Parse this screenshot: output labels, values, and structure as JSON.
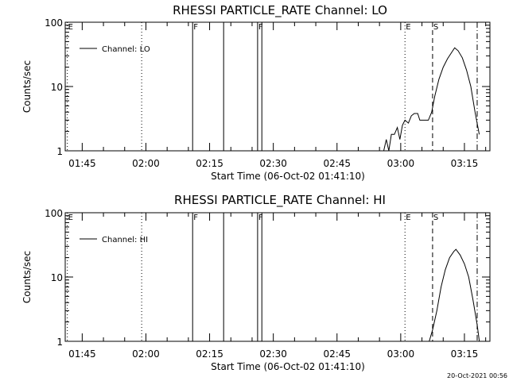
{
  "footer": {
    "timestamp": "20-Oct-2021 00:56"
  },
  "chart_data": [
    {
      "type": "line",
      "title": "RHESSI PARTICLE_RATE Channel: LO",
      "xlabel": "Start Time (06-Oct-02 01:41:10)",
      "ylabel": "Counts/sec",
      "ylog": true,
      "ylim": [
        1,
        100
      ],
      "xlim": [
        "01:41",
        "03:21"
      ],
      "x_ticks": [
        "01:45",
        "02:00",
        "02:15",
        "02:30",
        "02:45",
        "03:00",
        "03:15"
      ],
      "y_ticks": [
        "1",
        "10",
        "100"
      ],
      "legend": "Channel: LO",
      "legend_position": "top-left",
      "markers": [
        {
          "time": "01:41.5",
          "style": "dotted",
          "label": "E"
        },
        {
          "time": "01:59",
          "style": "dotted",
          "label": ""
        },
        {
          "time": "02:11",
          "style": "solid",
          "label": "F"
        },
        {
          "time": "02:18.3",
          "style": "solid",
          "label": ""
        },
        {
          "time": "02:26.3",
          "style": "solid",
          "label": "F"
        },
        {
          "time": "02:27.3",
          "style": "solid",
          "label": ""
        },
        {
          "time": "03:01",
          "style": "dotted",
          "label": "E"
        },
        {
          "time": "03:07.5",
          "style": "dashed",
          "label": "S"
        },
        {
          "time": "03:18",
          "style": "dashdot",
          "label": ""
        }
      ],
      "series": [
        {
          "points": [
            [
              "02:56",
              1.0
            ],
            [
              "02:56.6",
              1.5
            ],
            [
              "02:57.2",
              1.0
            ],
            [
              "02:57.8",
              1.8
            ],
            [
              "02:58.5",
              1.8
            ],
            [
              "02:59.2",
              2.3
            ],
            [
              "02:59.8",
              1.5
            ],
            [
              "03:00.4",
              2.5
            ],
            [
              "03:01",
              3.0
            ],
            [
              "03:01.8",
              2.7
            ],
            [
              "03:02.5",
              3.5
            ],
            [
              "03:03.2",
              3.8
            ],
            [
              "03:04",
              3.8
            ],
            [
              "03:04.5",
              3.0
            ],
            [
              "03:05.5",
              3.0
            ],
            [
              "03:06.5",
              3.0
            ],
            [
              "03:07.3",
              4.0
            ],
            [
              "03:08",
              7.0
            ],
            [
              "03:09",
              13.0
            ],
            [
              "03:10",
              20.0
            ],
            [
              "03:11",
              27.0
            ],
            [
              "03:12",
              34.0
            ],
            [
              "03:12.7",
              40.0
            ],
            [
              "03:13.5",
              36.0
            ],
            [
              "03:14.5",
              28.0
            ],
            [
              "03:15.5",
              18.0
            ],
            [
              "03:16.5",
              10.0
            ],
            [
              "03:17.5",
              4.0
            ],
            [
              "03:18.5",
              1.8
            ]
          ]
        }
      ]
    },
    {
      "type": "line",
      "title": "RHESSI PARTICLE_RATE Channel: HI",
      "xlabel": "Start Time (06-Oct-02 01:41:10)",
      "ylabel": "Counts/sec",
      "ylog": true,
      "ylim": [
        1,
        100
      ],
      "xlim": [
        "01:41",
        "03:21"
      ],
      "x_ticks": [
        "01:45",
        "02:00",
        "02:15",
        "02:30",
        "02:45",
        "03:00",
        "03:15"
      ],
      "y_ticks": [
        "1",
        "10",
        "100"
      ],
      "legend": "Channel: HI",
      "legend_position": "top-left",
      "markers": [
        {
          "time": "01:41.5",
          "style": "dotted",
          "label": "E"
        },
        {
          "time": "01:59",
          "style": "dotted",
          "label": ""
        },
        {
          "time": "02:11",
          "style": "solid",
          "label": "F"
        },
        {
          "time": "02:18.3",
          "style": "solid",
          "label": ""
        },
        {
          "time": "02:26.3",
          "style": "solid",
          "label": "F"
        },
        {
          "time": "02:27.3",
          "style": "solid",
          "label": ""
        },
        {
          "time": "03:01",
          "style": "dotted",
          "label": "E"
        },
        {
          "time": "03:07.5",
          "style": "dashed",
          "label": "S"
        },
        {
          "time": "03:18",
          "style": "dashdot",
          "label": ""
        }
      ],
      "series": [
        {
          "points": [
            [
              "03:06.5",
              0.9
            ],
            [
              "03:07.5",
              1.5
            ],
            [
              "03:08.5",
              3.0
            ],
            [
              "03:09.5",
              7.0
            ],
            [
              "03:10.5",
              13.0
            ],
            [
              "03:11.5",
              20.0
            ],
            [
              "03:12.5",
              25.0
            ],
            [
              "03:13",
              27.0
            ],
            [
              "03:14",
              22.0
            ],
            [
              "03:15",
              16.0
            ],
            [
              "03:16",
              10.0
            ],
            [
              "03:17",
              4.5
            ],
            [
              "03:18",
              1.8
            ],
            [
              "03:18.6",
              0.9
            ]
          ]
        }
      ]
    }
  ]
}
